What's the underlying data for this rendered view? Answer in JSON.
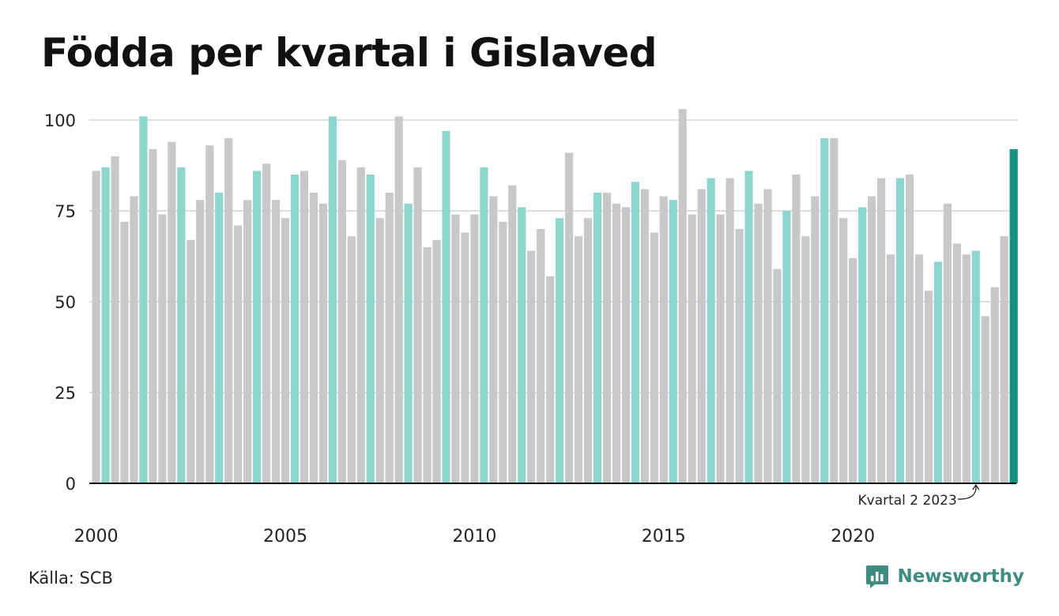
{
  "title": "Födda per kvartal i Gislaved",
  "source": "Källa: SCB",
  "brand": {
    "name": "Newsworthy",
    "icon": "newsworthy-logo-icon",
    "color": "#3e8c82"
  },
  "colors": {
    "q2": "#8dd6cf",
    "other": "#c8c8c8",
    "latest": "#14917f",
    "grid": "#dddddd",
    "axis": "#111111"
  },
  "chart_data": {
    "type": "bar",
    "title": "Födda per kvartal i Gislaved",
    "ylim": [
      0,
      105
    ],
    "yticks": [
      0,
      25,
      50,
      75,
      100
    ],
    "xtick_labels": [
      "2000",
      "2005",
      "2010",
      "2015",
      "2020"
    ],
    "grid": true,
    "annotation": {
      "text": "Kvartal 2 2023",
      "target": "2023 Q2"
    },
    "highlight": "Q2 bars teal; latest quarter dark teal",
    "series": [
      {
        "name": "Födda",
        "data": [
          {
            "q": "2000 Q1",
            "v": 86
          },
          {
            "q": "2000 Q2",
            "v": 87
          },
          {
            "q": "2000 Q3",
            "v": 90
          },
          {
            "q": "2000 Q4",
            "v": 72
          },
          {
            "q": "2001 Q1",
            "v": 79
          },
          {
            "q": "2001 Q2",
            "v": 101
          },
          {
            "q": "2001 Q3",
            "v": 92
          },
          {
            "q": "2001 Q4",
            "v": 74
          },
          {
            "q": "2002 Q1",
            "v": 94
          },
          {
            "q": "2002 Q2",
            "v": 87
          },
          {
            "q": "2002 Q3",
            "v": 67
          },
          {
            "q": "2002 Q4",
            "v": 78
          },
          {
            "q": "2003 Q1",
            "v": 93
          },
          {
            "q": "2003 Q2",
            "v": 80
          },
          {
            "q": "2003 Q3",
            "v": 95
          },
          {
            "q": "2003 Q4",
            "v": 71
          },
          {
            "q": "2004 Q1",
            "v": 78
          },
          {
            "q": "2004 Q2",
            "v": 86
          },
          {
            "q": "2004 Q3",
            "v": 88
          },
          {
            "q": "2004 Q4",
            "v": 78
          },
          {
            "q": "2005 Q1",
            "v": 73
          },
          {
            "q": "2005 Q2",
            "v": 85
          },
          {
            "q": "2005 Q3",
            "v": 86
          },
          {
            "q": "2005 Q4",
            "v": 80
          },
          {
            "q": "2006 Q1",
            "v": 77
          },
          {
            "q": "2006 Q2",
            "v": 101
          },
          {
            "q": "2006 Q3",
            "v": 89
          },
          {
            "q": "2006 Q4",
            "v": 68
          },
          {
            "q": "2007 Q1",
            "v": 87
          },
          {
            "q": "2007 Q2",
            "v": 85
          },
          {
            "q": "2007 Q3",
            "v": 73
          },
          {
            "q": "2007 Q4",
            "v": 80
          },
          {
            "q": "2008 Q1",
            "v": 101
          },
          {
            "q": "2008 Q2",
            "v": 77
          },
          {
            "q": "2008 Q3",
            "v": 87
          },
          {
            "q": "2008 Q4",
            "v": 65
          },
          {
            "q": "2009 Q1",
            "v": 67
          },
          {
            "q": "2009 Q2",
            "v": 97
          },
          {
            "q": "2009 Q3",
            "v": 74
          },
          {
            "q": "2009 Q4",
            "v": 69
          },
          {
            "q": "2010 Q1",
            "v": 74
          },
          {
            "q": "2010 Q2",
            "v": 87
          },
          {
            "q": "2010 Q3",
            "v": 79
          },
          {
            "q": "2010 Q4",
            "v": 72
          },
          {
            "q": "2011 Q1",
            "v": 82
          },
          {
            "q": "2011 Q2",
            "v": 76
          },
          {
            "q": "2011 Q3",
            "v": 64
          },
          {
            "q": "2011 Q4",
            "v": 70
          },
          {
            "q": "2012 Q1",
            "v": 57
          },
          {
            "q": "2012 Q2",
            "v": 73
          },
          {
            "q": "2012 Q3",
            "v": 91
          },
          {
            "q": "2012 Q4",
            "v": 68
          },
          {
            "q": "2013 Q1",
            "v": 73
          },
          {
            "q": "2013 Q2",
            "v": 80
          },
          {
            "q": "2013 Q3",
            "v": 80
          },
          {
            "q": "2013 Q4",
            "v": 77
          },
          {
            "q": "2014 Q1",
            "v": 76
          },
          {
            "q": "2014 Q2",
            "v": 83
          },
          {
            "q": "2014 Q3",
            "v": 81
          },
          {
            "q": "2014 Q4",
            "v": 69
          },
          {
            "q": "2015 Q1",
            "v": 79
          },
          {
            "q": "2015 Q2",
            "v": 78
          },
          {
            "q": "2015 Q3",
            "v": 103
          },
          {
            "q": "2015 Q4",
            "v": 74
          },
          {
            "q": "2016 Q1",
            "v": 81
          },
          {
            "q": "2016 Q2",
            "v": 84
          },
          {
            "q": "2016 Q3",
            "v": 74
          },
          {
            "q": "2016 Q4",
            "v": 84
          },
          {
            "q": "2017 Q1",
            "v": 70
          },
          {
            "q": "2017 Q2",
            "v": 86
          },
          {
            "q": "2017 Q3",
            "v": 77
          },
          {
            "q": "2017 Q4",
            "v": 81
          },
          {
            "q": "2018 Q1",
            "v": 59
          },
          {
            "q": "2018 Q2",
            "v": 75
          },
          {
            "q": "2018 Q3",
            "v": 85
          },
          {
            "q": "2018 Q4",
            "v": 68
          },
          {
            "q": "2019 Q1",
            "v": 79
          },
          {
            "q": "2019 Q2",
            "v": 95
          },
          {
            "q": "2019 Q3",
            "v": 95
          },
          {
            "q": "2019 Q4",
            "v": 73
          },
          {
            "q": "2020 Q1",
            "v": 62
          },
          {
            "q": "2020 Q2",
            "v": 76
          },
          {
            "q": "2020 Q3",
            "v": 79
          },
          {
            "q": "2020 Q4",
            "v": 84
          },
          {
            "q": "2021 Q1",
            "v": 63
          },
          {
            "q": "2021 Q2",
            "v": 84
          },
          {
            "q": "2021 Q3",
            "v": 85
          },
          {
            "q": "2021 Q4",
            "v": 63
          },
          {
            "q": "2022 Q1",
            "v": 53
          },
          {
            "q": "2022 Q2",
            "v": 61
          },
          {
            "q": "2022 Q3",
            "v": 77
          },
          {
            "q": "2022 Q4",
            "v": 66
          },
          {
            "q": "2023 Q1",
            "v": 63
          },
          {
            "q": "2023 Q2",
            "v": 64
          },
          {
            "q": "2023 Q3",
            "v": 46
          },
          {
            "q": "2023 Q4",
            "v": 54
          },
          {
            "q": "2024 Q1",
            "v": 68
          },
          {
            "q": "2024 Q2",
            "v": 92
          }
        ]
      }
    ]
  }
}
